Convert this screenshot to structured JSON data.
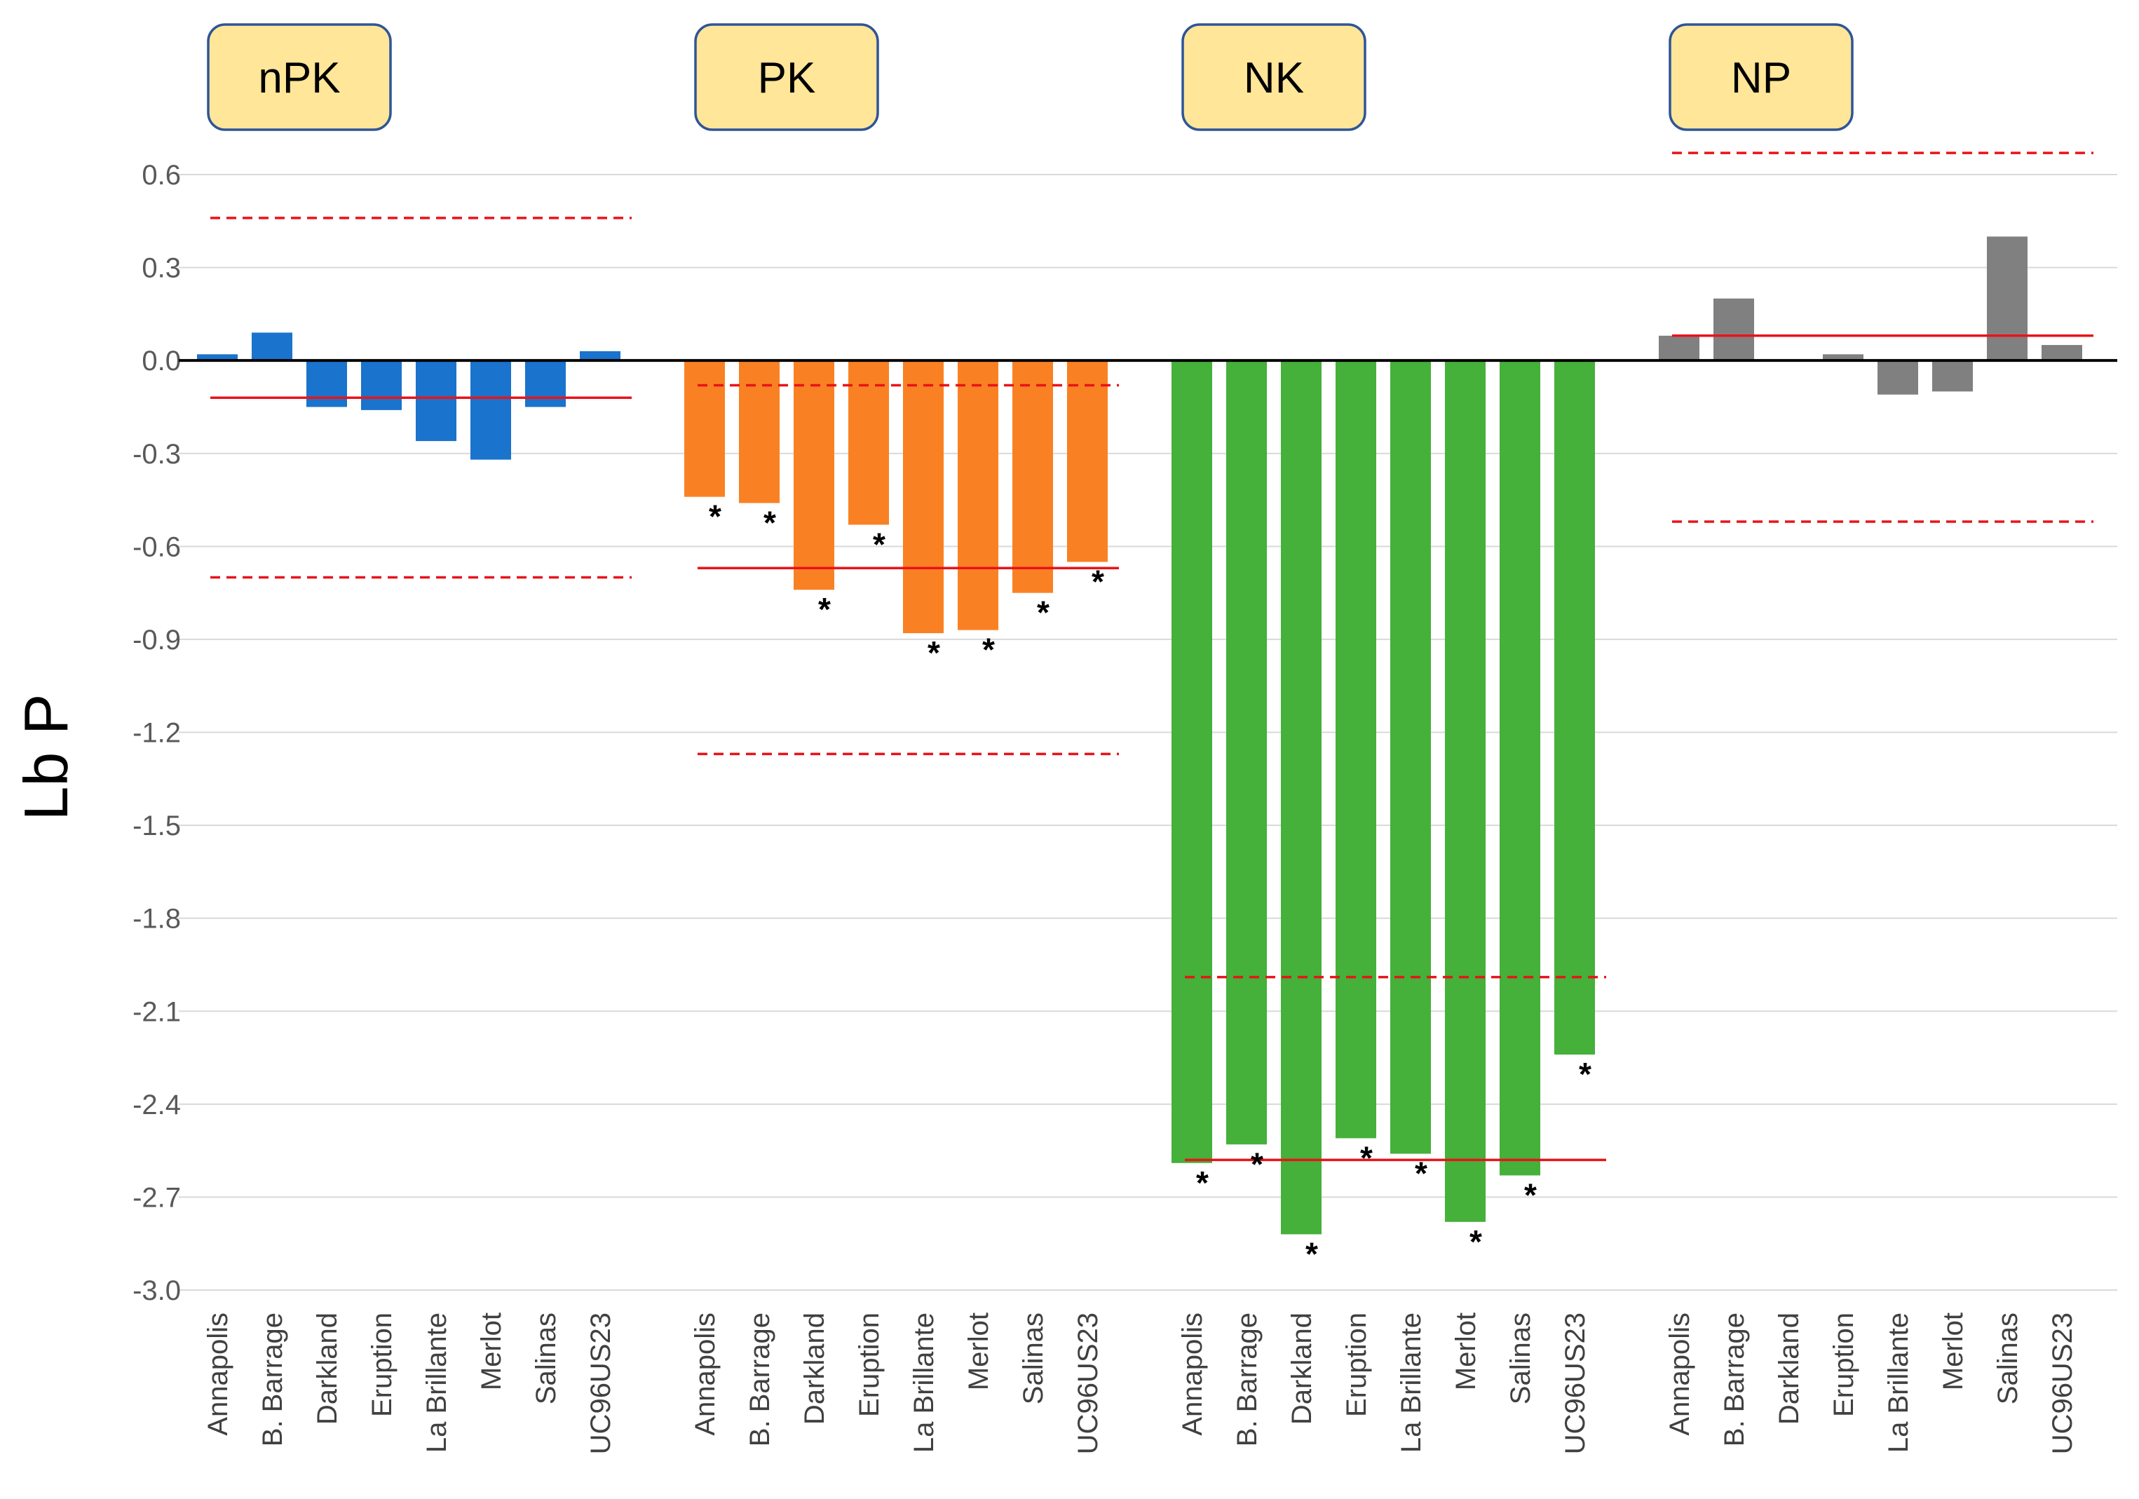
{
  "chart_data": {
    "type": "bar",
    "ylabel": "Lb P",
    "ylim": [
      -3.0,
      0.6
    ],
    "yticks": [
      "0.6",
      "0.3",
      "0.0",
      "-0.3",
      "-0.6",
      "-0.9",
      "-1.2",
      "-1.5",
      "-1.8",
      "-2.1",
      "-2.4",
      "-2.7",
      "-3.0"
    ],
    "grid": true,
    "categories": [
      "Annapolis",
      "B. Barrage",
      "Darkland",
      "Eruption",
      "La Brillante",
      "Merlot",
      "Salinas",
      "UC96US23"
    ],
    "significance_marker": "*",
    "panels": [
      {
        "name": "nPK",
        "color": "#1a73cc",
        "values": [
          0.02,
          0.09,
          -0.15,
          -0.16,
          -0.26,
          -0.32,
          -0.15,
          0.03
        ],
        "significant": [
          false,
          false,
          false,
          false,
          false,
          false,
          false,
          false
        ],
        "mean_line": -0.12,
        "ci_upper": 0.46,
        "ci_lower": -0.7
      },
      {
        "name": "PK",
        "color": "#f98123",
        "values": [
          -0.44,
          -0.46,
          -0.74,
          -0.53,
          -0.88,
          -0.87,
          -0.75,
          -0.65
        ],
        "significant": [
          true,
          true,
          true,
          true,
          true,
          true,
          true,
          true
        ],
        "mean_line": -0.67,
        "ci_upper": -0.08,
        "ci_lower": -1.27
      },
      {
        "name": "NK",
        "color": "#45b03a",
        "values": [
          -2.59,
          -2.53,
          -2.82,
          -2.51,
          -2.56,
          -2.78,
          -2.63,
          -2.24
        ],
        "significant": [
          true,
          true,
          true,
          true,
          true,
          true,
          true,
          true
        ],
        "mean_line": -2.58,
        "ci_upper": -1.99,
        "ci_lower": null
      },
      {
        "name": "NP",
        "color": "#808080",
        "values": [
          0.08,
          0.2,
          0.0,
          0.02,
          -0.11,
          -0.1,
          0.4,
          0.05
        ],
        "significant": [
          false,
          false,
          false,
          false,
          false,
          false,
          false,
          false
        ],
        "mean_line": 0.08,
        "ci_upper": 0.67,
        "ci_lower": -0.52
      }
    ]
  }
}
